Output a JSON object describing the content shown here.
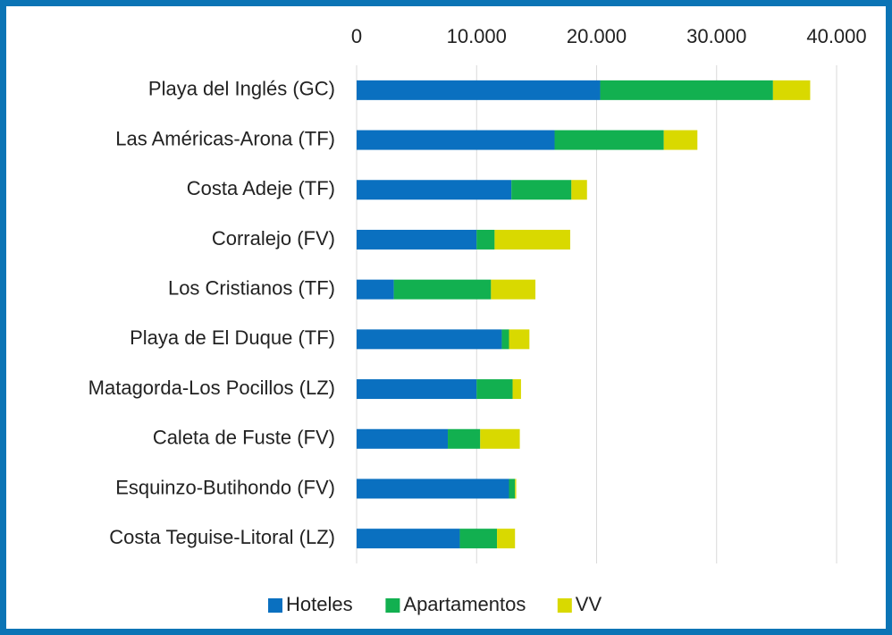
{
  "chart_data": {
    "type": "stacked-barh",
    "categories": [
      "Playa del Inglés (GC)",
      "Las Américas-Arona (TF)",
      "Costa Adeje (TF)",
      "Corralejo (FV)",
      "Los Cristianos (TF)",
      "Playa de El Duque (TF)",
      "Matagorda-Los Pocillos (LZ)",
      "Caleta de Fuste (FV)",
      "Esquinzo-Butihondo (FV)",
      "Costa Teguise-Litoral (LZ)"
    ],
    "series": [
      {
        "name": "Hoteles",
        "color": "#0a70c0",
        "values": [
          20300,
          16500,
          12900,
          10000,
          3100,
          12100,
          10000,
          7600,
          12700,
          8600
        ]
      },
      {
        "name": "Apartamentos",
        "color": "#12b050",
        "values": [
          14400,
          9100,
          5000,
          1500,
          8100,
          600,
          3000,
          2700,
          500,
          3100
        ]
      },
      {
        "name": "VV",
        "color": "#d9d900",
        "values": [
          3100,
          2800,
          1300,
          6300,
          3700,
          1700,
          700,
          3300,
          100,
          1500
        ]
      }
    ],
    "xlim": [
      0,
      40000
    ],
    "xticks": [
      0,
      {
        "value": 10000,
        "label": "10.000"
      },
      {
        "value": 20000,
        "label": "20.000"
      },
      {
        "value": 30000,
        "label": "30.000"
      },
      {
        "value": 40000,
        "label": "40.000"
      }
    ],
    "grid": true,
    "legend": "bottom"
  }
}
